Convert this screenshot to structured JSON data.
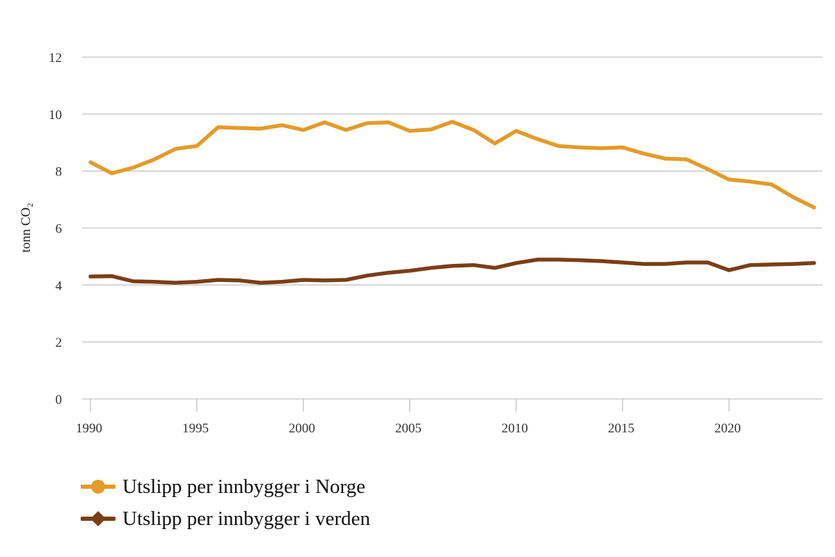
{
  "chart_data": {
    "type": "line",
    "title": "",
    "xlabel": "",
    "ylabel": "tonn CO₂",
    "ylim": [
      0,
      12
    ],
    "yticks": [
      "0",
      "2",
      "4",
      "6",
      "8",
      "10",
      "12"
    ],
    "xlim": [
      1990,
      2024
    ],
    "xticks": [
      "1990",
      "1995",
      "2000",
      "2005",
      "2010",
      "2015",
      "2020"
    ],
    "grid": true,
    "legend_position": "bottom-left",
    "x": [
      1990,
      1991,
      1992,
      1993,
      1994,
      1995,
      1996,
      1997,
      1998,
      1999,
      2000,
      2001,
      2002,
      2003,
      2004,
      2005,
      2006,
      2007,
      2008,
      2009,
      2010,
      2011,
      2012,
      2013,
      2014,
      2015,
      2016,
      2017,
      2018,
      2019,
      2020,
      2021,
      2022,
      2023,
      2024
    ],
    "series": [
      {
        "name": "Utslipp per innbygger i Norge",
        "color": "#E39B2A",
        "marker": "circle",
        "values": [
          8.31,
          7.92,
          8.12,
          8.41,
          8.78,
          8.88,
          9.54,
          9.51,
          9.49,
          9.61,
          9.44,
          9.71,
          9.44,
          9.68,
          9.71,
          9.41,
          9.46,
          9.73,
          9.44,
          8.97,
          9.41,
          9.12,
          8.88,
          8.83,
          8.8,
          8.83,
          8.61,
          8.44,
          8.41,
          8.07,
          7.7,
          7.63,
          7.53,
          7.09,
          6.72
        ]
      },
      {
        "name": "Utslipp per innbygger i verden",
        "color": "#7A3F16",
        "marker": "diamond",
        "values": [
          4.3,
          4.31,
          4.13,
          4.11,
          4.08,
          4.11,
          4.18,
          4.16,
          4.08,
          4.11,
          4.18,
          4.16,
          4.18,
          4.33,
          4.43,
          4.5,
          4.6,
          4.67,
          4.7,
          4.6,
          4.77,
          4.89,
          4.89,
          4.87,
          4.84,
          4.79,
          4.74,
          4.74,
          4.79,
          4.79,
          4.52,
          4.7,
          4.72,
          4.74,
          4.77
        ]
      }
    ]
  },
  "colors": {
    "grid": "#C4C4C4",
    "axis": "#BFBFBF"
  }
}
